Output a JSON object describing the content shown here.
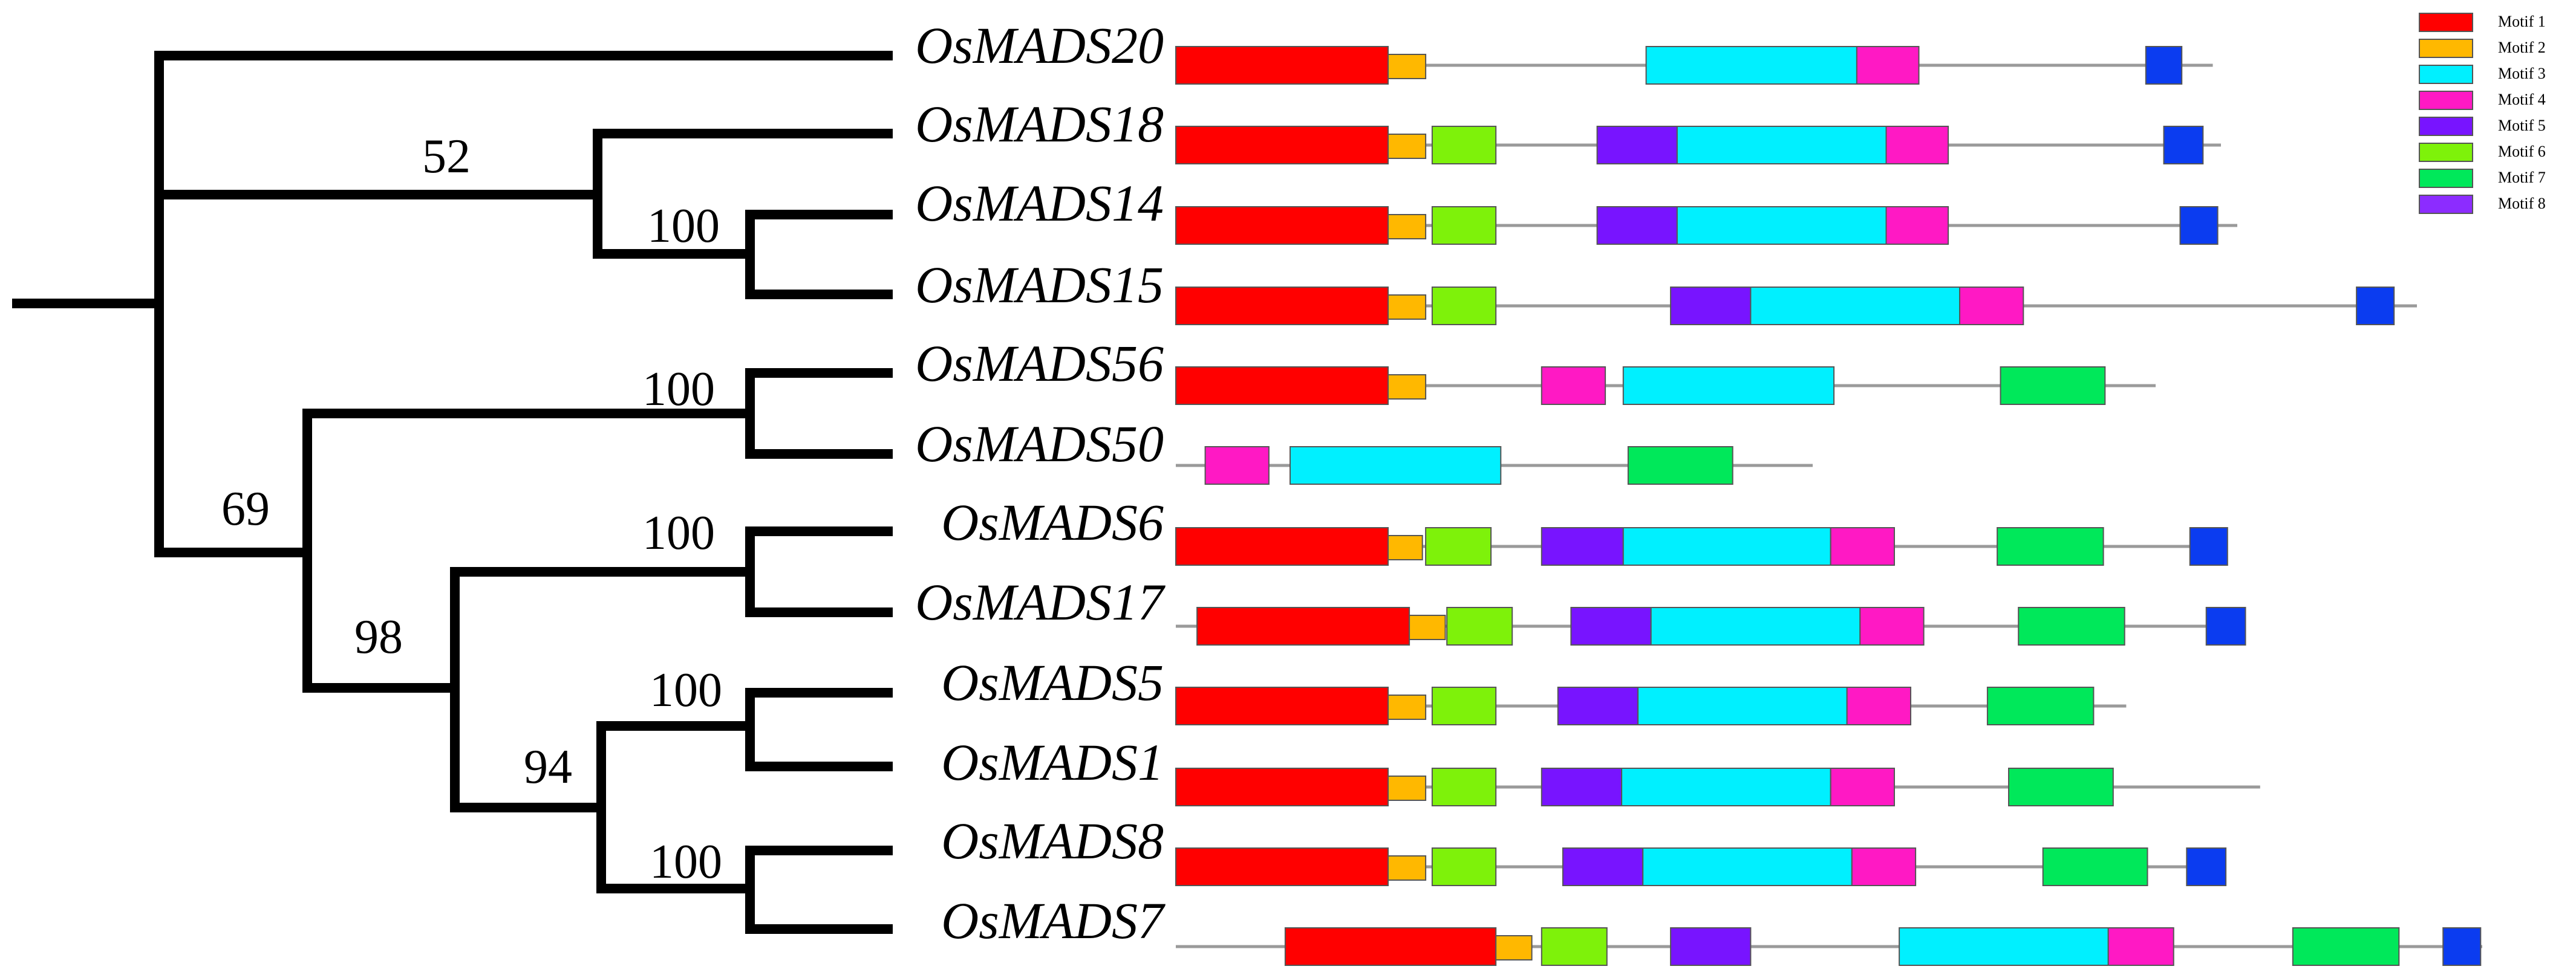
{
  "colors": {
    "branch": "#000000",
    "backbone": "#9a9a9a"
  },
  "motifs": [
    {
      "id": 1,
      "label": "Motif 1",
      "color": "#ff0000"
    },
    {
      "id": 2,
      "label": "Motif 2",
      "color": "#ffb800"
    },
    {
      "id": 3,
      "label": "Motif 3",
      "color": "#00f0ff"
    },
    {
      "id": 4,
      "label": "Motif 4",
      "color": "#ff19c4"
    },
    {
      "id": 5,
      "label": "Motif 5",
      "color": "#7814ff"
    },
    {
      "id": 6,
      "label": "Motif 6",
      "color": "#7ef20a"
    },
    {
      "id": 7,
      "label": "Motif 7",
      "color": "#00e85a"
    },
    {
      "id": 8,
      "label": "Motif 8",
      "color": "#8c2cff"
    },
    {
      "id": 9,
      "label": "",
      "color": "#0b3cf0"
    }
  ],
  "genes": [
    {
      "name": "OsMADS20",
      "length": 63.5,
      "motifs": [
        [
          1,
          0,
          13
        ],
        [
          2,
          13,
          15.3
        ],
        [
          3,
          28.8,
          41.7
        ],
        [
          4,
          41.7,
          45.5
        ],
        [
          9,
          59.4,
          61.6
        ]
      ]
    },
    {
      "name": "OsMADS18",
      "length": 64,
      "motifs": [
        [
          1,
          0,
          13
        ],
        [
          2,
          13,
          15.3
        ],
        [
          6,
          15.7,
          19.6
        ],
        [
          5,
          25.8,
          30.7
        ],
        [
          3,
          30.7,
          43.5
        ],
        [
          4,
          43.5,
          47.3
        ],
        [
          9,
          60.5,
          62.9
        ]
      ]
    },
    {
      "name": "OsMADS14",
      "length": 65,
      "motifs": [
        [
          1,
          0,
          13
        ],
        [
          2,
          13,
          15.3
        ],
        [
          6,
          15.7,
          19.6
        ],
        [
          5,
          25.8,
          30.7
        ],
        [
          3,
          30.7,
          43.5
        ],
        [
          4,
          43.5,
          47.3
        ],
        [
          9,
          61.5,
          63.8
        ]
      ]
    },
    {
      "name": "OsMADS15",
      "length": 76,
      "motifs": [
        [
          1,
          0,
          13
        ],
        [
          2,
          13,
          15.3
        ],
        [
          6,
          15.7,
          19.6
        ],
        [
          5,
          30.3,
          35.2
        ],
        [
          3,
          35.2,
          48
        ],
        [
          4,
          48,
          51.9
        ],
        [
          9,
          72.3,
          74.6
        ]
      ]
    },
    {
      "name": "OsMADS56",
      "length": 60,
      "motifs": [
        [
          1,
          0,
          13
        ],
        [
          2,
          13,
          15.3
        ],
        [
          4,
          22.4,
          26.3
        ],
        [
          3,
          27.4,
          40.3
        ],
        [
          7,
          50.5,
          56.9
        ]
      ]
    },
    {
      "name": "OsMADS50",
      "length": 39,
      "motifs": [
        [
          4,
          1.8,
          5.7
        ],
        [
          3,
          7,
          19.9
        ],
        [
          7,
          27.7,
          34.1
        ]
      ]
    },
    {
      "name": "OsMADS6",
      "length": 64.2,
      "motifs": [
        [
          1,
          0,
          13
        ],
        [
          2,
          13,
          15.1
        ],
        [
          6,
          15.3,
          19.3
        ],
        [
          5,
          22.4,
          27.4
        ],
        [
          3,
          27.4,
          40.1
        ],
        [
          4,
          40.1,
          44
        ],
        [
          7,
          50.3,
          56.8
        ],
        [
          9,
          62.1,
          64.4
        ]
      ]
    },
    {
      "name": "OsMADS17",
      "length": 65.2,
      "motifs": [
        [
          1,
          1.3,
          14.3
        ],
        [
          2,
          14.3,
          16.5
        ],
        [
          6,
          16.6,
          20.6
        ],
        [
          5,
          24.2,
          29.1
        ],
        [
          3,
          29.1,
          41.9
        ],
        [
          4,
          41.9,
          45.8
        ],
        [
          7,
          51.6,
          58.1
        ],
        [
          9,
          63.1,
          65.5
        ]
      ]
    },
    {
      "name": "OsMADS5",
      "length": 58.2,
      "motifs": [
        [
          1,
          0,
          13
        ],
        [
          2,
          13,
          15.3
        ],
        [
          6,
          15.7,
          19.6
        ],
        [
          5,
          23.4,
          28.3
        ],
        [
          3,
          28.3,
          41.1
        ],
        [
          4,
          41.1,
          45
        ],
        [
          7,
          49.7,
          56.2
        ]
      ]
    },
    {
      "name": "OsMADS1",
      "length": 66.4,
      "motifs": [
        [
          1,
          0,
          13
        ],
        [
          2,
          13,
          15.3
        ],
        [
          6,
          15.7,
          19.6
        ],
        [
          5,
          22.4,
          27.3
        ],
        [
          3,
          27.3,
          40.1
        ],
        [
          4,
          40.1,
          44
        ],
        [
          7,
          51,
          57.4
        ]
      ]
    },
    {
      "name": "OsMADS8",
      "length": 63.6,
      "motifs": [
        [
          1,
          0,
          13
        ],
        [
          2,
          13,
          15.3
        ],
        [
          6,
          15.7,
          19.6
        ],
        [
          5,
          23.7,
          28.6
        ],
        [
          3,
          28.6,
          41.4
        ],
        [
          4,
          41.4,
          45.3
        ],
        [
          7,
          53.1,
          59.5
        ],
        [
          9,
          61.9,
          64.3
        ]
      ]
    },
    {
      "name": "OsMADS7",
      "length": 80,
      "motifs": [
        [
          1,
          6.7,
          19.6
        ],
        [
          2,
          19.6,
          21.8
        ],
        [
          6,
          22.4,
          26.4
        ],
        [
          5,
          30.3,
          35.2
        ],
        [
          3,
          44.3,
          57.1
        ],
        [
          4,
          57.1,
          61.1
        ],
        [
          7,
          68.4,
          74.9
        ],
        [
          9,
          77.6,
          79.9
        ]
      ]
    }
  ],
  "bootstrap_labels": [
    {
      "node": "n_18_14_15",
      "value": "52"
    },
    {
      "node": "n_14_15",
      "value": "100"
    },
    {
      "node": "n_56_50",
      "value": "100"
    },
    {
      "node": "n_lower",
      "value": "69"
    },
    {
      "node": "n_6_17",
      "value": "100"
    },
    {
      "node": "n_6_to_7",
      "value": "98"
    },
    {
      "node": "n_5_1",
      "value": "100"
    },
    {
      "node": "n_5_to_7",
      "value": "94"
    },
    {
      "node": "n_8_7",
      "value": "100"
    }
  ]
}
